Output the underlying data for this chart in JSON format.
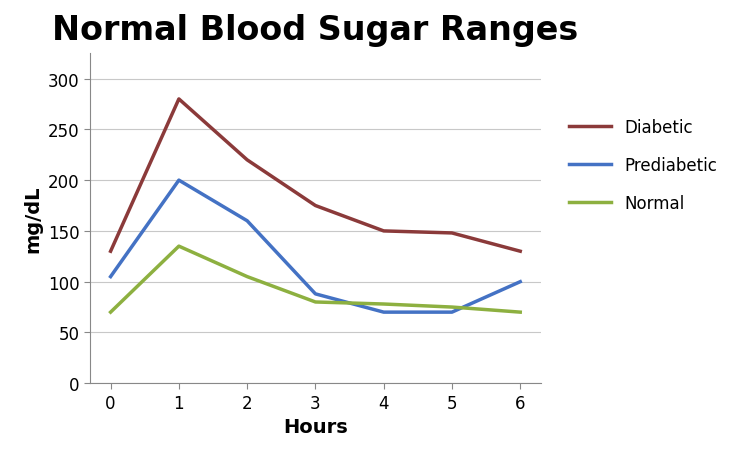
{
  "title": "Normal Blood Sugar Ranges",
  "xlabel": "Hours",
  "ylabel": "mg/dL",
  "x": [
    0,
    1,
    2,
    3,
    4,
    5,
    6
  ],
  "diabetic": [
    130,
    280,
    220,
    175,
    150,
    148,
    130
  ],
  "prediabetic": [
    105,
    200,
    160,
    88,
    70,
    70,
    100
  ],
  "normal": [
    70,
    135,
    105,
    80,
    78,
    75,
    70
  ],
  "diabetic_color": "#8b3a3a",
  "prediabetic_color": "#4472c4",
  "normal_color": "#8db040",
  "ylim": [
    0,
    325
  ],
  "yticks": [
    0,
    50,
    100,
    150,
    200,
    250,
    300
  ],
  "xticks": [
    0,
    1,
    2,
    3,
    4,
    5,
    6
  ],
  "title_fontsize": 24,
  "axis_label_fontsize": 14,
  "tick_fontsize": 12,
  "legend_fontsize": 12,
  "linewidth": 2.5,
  "background_color": "#ffffff",
  "legend_labels": [
    "Diabetic",
    "Prediabetic",
    "Normal"
  ]
}
